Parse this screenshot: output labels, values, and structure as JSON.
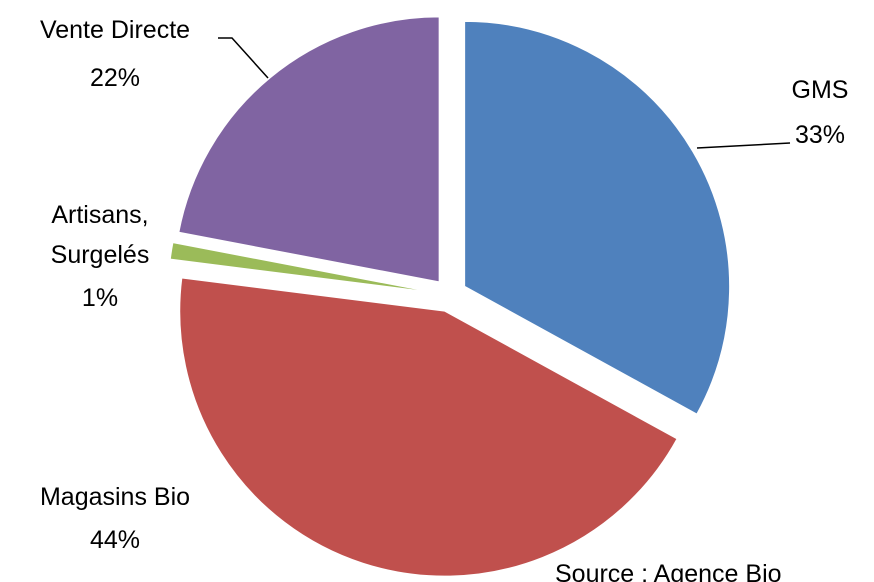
{
  "chart_data": {
    "type": "pie",
    "categories": [
      "GMS",
      "Magasins Bio",
      "Artisans, Surgelés",
      "Vente Directe"
    ],
    "values": [
      33,
      44,
      1,
      22
    ],
    "value_labels": [
      "33%",
      "44%",
      "1%",
      "22%"
    ],
    "colors": [
      "#4f81bd",
      "#c0504d",
      "#9bbb59",
      "#8064a2"
    ],
    "source": "Source : Agence Bio"
  }
}
